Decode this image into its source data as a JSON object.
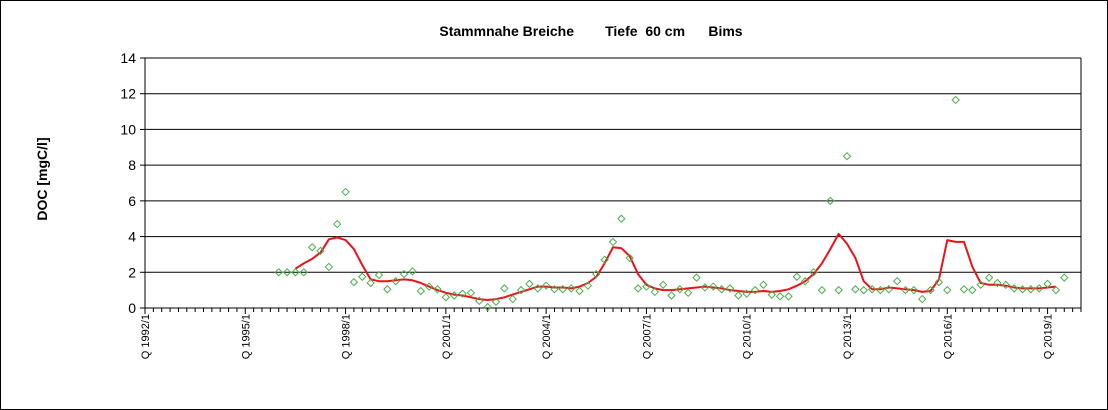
{
  "chart_data": {
    "type": "scatter",
    "title": "Stammnahe Breiche        Tiefe  60 cm      Bims",
    "xlabel": "",
    "ylabel": "DOC [mgC/l]",
    "ylim": [
      0,
      14
    ],
    "yticks": [
      0,
      2,
      4,
      6,
      8,
      10,
      12,
      14
    ],
    "xlim": [
      1992.0,
      2020.0
    ],
    "xticks": [
      {
        "label": "Q 1992/1",
        "x": 1992.0
      },
      {
        "label": "Q 1995/1",
        "x": 1995.0
      },
      {
        "label": "Q 1998/1",
        "x": 1998.0
      },
      {
        "label": "Q 2001/1",
        "x": 2001.0
      },
      {
        "label": "Q 2004/1",
        "x": 2004.0
      },
      {
        "label": "Q 2007/1",
        "x": 2007.0
      },
      {
        "label": "Q 2010/1",
        "x": 2010.0
      },
      {
        "label": "Q 2013/1",
        "x": 2013.0
      },
      {
        "label": "Q 2016/1",
        "x": 2016.0
      },
      {
        "label": "Q 2019/1",
        "x": 2019.0
      }
    ],
    "grid": "horizontal",
    "colors": {
      "points": "#4caf4c",
      "line": "#e8141a",
      "grid": "#000000",
      "plot_bg": "#ffffff"
    },
    "series": [
      {
        "kind": "scatter",
        "marker": "diamond-open",
        "points": [
          [
            1996.0,
            2.0
          ],
          [
            1996.25,
            2.0
          ],
          [
            1996.5,
            2.0
          ],
          [
            1996.75,
            2.0
          ],
          [
            1997.0,
            3.4
          ],
          [
            1997.25,
            3.2
          ],
          [
            1997.5,
            2.3
          ],
          [
            1997.75,
            4.7
          ],
          [
            1998.0,
            6.5
          ],
          [
            1998.25,
            1.45
          ],
          [
            1998.5,
            1.75
          ],
          [
            1998.75,
            1.4
          ],
          [
            1999.0,
            1.85
          ],
          [
            1999.25,
            1.05
          ],
          [
            1999.5,
            1.5
          ],
          [
            1999.75,
            1.9
          ],
          [
            2000.0,
            2.05
          ],
          [
            2000.25,
            0.95
          ],
          [
            2000.5,
            1.2
          ],
          [
            2000.75,
            1.05
          ],
          [
            2001.0,
            0.6
          ],
          [
            2001.25,
            0.7
          ],
          [
            2001.5,
            0.8
          ],
          [
            2001.75,
            0.85
          ],
          [
            2002.0,
            0.4
          ],
          [
            2002.25,
            0.05
          ],
          [
            2002.5,
            0.35
          ],
          [
            2002.75,
            1.1
          ],
          [
            2003.0,
            0.5
          ],
          [
            2003.25,
            1.0
          ],
          [
            2003.5,
            1.35
          ],
          [
            2003.75,
            1.1
          ],
          [
            2004.0,
            1.25
          ],
          [
            2004.25,
            1.05
          ],
          [
            2004.5,
            1.05
          ],
          [
            2004.75,
            1.1
          ],
          [
            2005.0,
            0.95
          ],
          [
            2005.25,
            1.25
          ],
          [
            2005.5,
            1.9
          ],
          [
            2005.75,
            2.7
          ],
          [
            2006.0,
            3.7
          ],
          [
            2006.25,
            5.0
          ],
          [
            2006.5,
            2.8
          ],
          [
            2006.75,
            1.1
          ],
          [
            2007.0,
            1.2
          ],
          [
            2007.25,
            0.9
          ],
          [
            2007.5,
            1.3
          ],
          [
            2007.75,
            0.7
          ],
          [
            2008.0,
            1.05
          ],
          [
            2008.25,
            0.85
          ],
          [
            2008.5,
            1.7
          ],
          [
            2008.75,
            1.15
          ],
          [
            2009.0,
            1.2
          ],
          [
            2009.25,
            1.05
          ],
          [
            2009.5,
            1.1
          ],
          [
            2009.75,
            0.7
          ],
          [
            2010.0,
            0.8
          ],
          [
            2010.25,
            1.0
          ],
          [
            2010.5,
            1.3
          ],
          [
            2010.75,
            0.75
          ],
          [
            2011.0,
            0.65
          ],
          [
            2011.25,
            0.65
          ],
          [
            2011.5,
            1.75
          ],
          [
            2011.75,
            1.5
          ],
          [
            2012.0,
            2.0
          ],
          [
            2012.25,
            1.0
          ],
          [
            2012.5,
            6.0
          ],
          [
            2012.75,
            1.0
          ],
          [
            2013.0,
            8.5
          ],
          [
            2013.25,
            1.05
          ],
          [
            2013.5,
            1.0
          ],
          [
            2013.75,
            1.05
          ],
          [
            2014.0,
            1.0
          ],
          [
            2014.25,
            1.05
          ],
          [
            2014.5,
            1.5
          ],
          [
            2014.75,
            1.0
          ],
          [
            2015.0,
            1.0
          ],
          [
            2015.25,
            0.5
          ],
          [
            2015.5,
            1.0
          ],
          [
            2015.75,
            1.45
          ],
          [
            2016.0,
            1.0
          ],
          [
            2016.25,
            11.65
          ],
          [
            2016.5,
            1.05
          ],
          [
            2016.75,
            1.0
          ],
          [
            2017.0,
            1.3
          ],
          [
            2017.25,
            1.7
          ],
          [
            2017.5,
            1.4
          ],
          [
            2017.75,
            1.3
          ],
          [
            2018.0,
            1.1
          ],
          [
            2018.25,
            1.05
          ],
          [
            2018.5,
            1.05
          ],
          [
            2018.75,
            1.1
          ],
          [
            2019.0,
            1.35
          ],
          [
            2019.25,
            1.0
          ],
          [
            2019.5,
            1.7
          ]
        ]
      },
      {
        "kind": "line",
        "points": [
          [
            1996.5,
            2.2
          ],
          [
            1996.75,
            2.5
          ],
          [
            1997.0,
            2.75
          ],
          [
            1997.25,
            3.1
          ],
          [
            1997.5,
            3.85
          ],
          [
            1997.75,
            3.95
          ],
          [
            1998.0,
            3.8
          ],
          [
            1998.25,
            3.3
          ],
          [
            1998.5,
            2.4
          ],
          [
            1998.75,
            1.6
          ],
          [
            1999.0,
            1.5
          ],
          [
            1999.25,
            1.5
          ],
          [
            1999.5,
            1.55
          ],
          [
            1999.75,
            1.6
          ],
          [
            2000.0,
            1.55
          ],
          [
            2000.25,
            1.4
          ],
          [
            2000.5,
            1.2
          ],
          [
            2000.75,
            1.0
          ],
          [
            2001.0,
            0.85
          ],
          [
            2001.25,
            0.75
          ],
          [
            2001.5,
            0.7
          ],
          [
            2001.75,
            0.6
          ],
          [
            2002.0,
            0.5
          ],
          [
            2002.25,
            0.45
          ],
          [
            2002.5,
            0.5
          ],
          [
            2002.75,
            0.6
          ],
          [
            2003.0,
            0.75
          ],
          [
            2003.25,
            0.9
          ],
          [
            2003.5,
            1.05
          ],
          [
            2003.75,
            1.2
          ],
          [
            2004.0,
            1.2
          ],
          [
            2004.25,
            1.15
          ],
          [
            2004.5,
            1.15
          ],
          [
            2004.75,
            1.1
          ],
          [
            2005.0,
            1.2
          ],
          [
            2005.25,
            1.4
          ],
          [
            2005.5,
            1.75
          ],
          [
            2005.75,
            2.5
          ],
          [
            2006.0,
            3.4
          ],
          [
            2006.25,
            3.35
          ],
          [
            2006.5,
            2.9
          ],
          [
            2006.75,
            1.9
          ],
          [
            2007.0,
            1.3
          ],
          [
            2007.25,
            1.1
          ],
          [
            2007.5,
            1.0
          ],
          [
            2007.75,
            1.0
          ],
          [
            2008.0,
            1.05
          ],
          [
            2008.25,
            1.1
          ],
          [
            2008.5,
            1.15
          ],
          [
            2008.75,
            1.2
          ],
          [
            2009.0,
            1.15
          ],
          [
            2009.25,
            1.1
          ],
          [
            2009.5,
            1.0
          ],
          [
            2009.75,
            0.95
          ],
          [
            2010.0,
            0.9
          ],
          [
            2010.25,
            0.9
          ],
          [
            2010.5,
            0.95
          ],
          [
            2010.75,
            0.9
          ],
          [
            2011.0,
            0.95
          ],
          [
            2011.25,
            1.05
          ],
          [
            2011.5,
            1.25
          ],
          [
            2011.75,
            1.5
          ],
          [
            2012.0,
            1.9
          ],
          [
            2012.25,
            2.5
          ],
          [
            2012.5,
            3.3
          ],
          [
            2012.75,
            4.15
          ],
          [
            2013.0,
            3.6
          ],
          [
            2013.25,
            2.8
          ],
          [
            2013.5,
            1.5
          ],
          [
            2013.75,
            1.05
          ],
          [
            2014.0,
            1.05
          ],
          [
            2014.25,
            1.15
          ],
          [
            2014.5,
            1.1
          ],
          [
            2014.75,
            1.05
          ],
          [
            2015.0,
            1.0
          ],
          [
            2015.25,
            0.9
          ],
          [
            2015.5,
            0.95
          ],
          [
            2015.75,
            1.6
          ],
          [
            2016.0,
            3.8
          ],
          [
            2016.25,
            3.7
          ],
          [
            2016.5,
            3.7
          ],
          [
            2016.75,
            2.3
          ],
          [
            2017.0,
            1.4
          ],
          [
            2017.25,
            1.3
          ],
          [
            2017.5,
            1.3
          ],
          [
            2017.75,
            1.25
          ],
          [
            2018.0,
            1.15
          ],
          [
            2018.25,
            1.1
          ],
          [
            2018.5,
            1.1
          ],
          [
            2018.75,
            1.1
          ],
          [
            2019.0,
            1.15
          ],
          [
            2019.25,
            1.2
          ]
        ]
      }
    ]
  }
}
